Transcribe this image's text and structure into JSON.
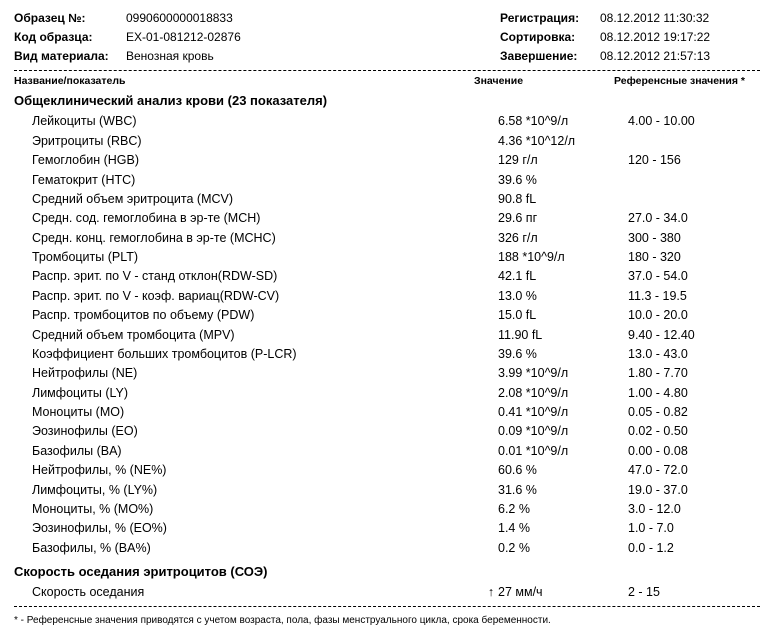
{
  "header": {
    "left": [
      {
        "label": "Образец №:",
        "value": "0990600000018833"
      },
      {
        "label": "Код образца:",
        "value": "EX-01-081212-02876"
      },
      {
        "label": "Вид материала:",
        "value": "Венозная кровь"
      }
    ],
    "right": [
      {
        "label": "Регистрация:",
        "value": "08.12.2012  11:30:32"
      },
      {
        "label": "Сортировка:",
        "value": "08.12.2012  19:17:22"
      },
      {
        "label": "Завершение:",
        "value": "08.12.2012  21:57:13"
      }
    ]
  },
  "columns": {
    "name": "Название/показатель",
    "value": "Значение",
    "ref": "Референсные значения *"
  },
  "sections": [
    {
      "title": "Общеклинический анализ крови (23 показателя)",
      "rows": [
        {
          "name": "Лейкоциты (WBC)",
          "value": "6.58 *10^9/л",
          "ref": "4.00 - 10.00"
        },
        {
          "name": "Эритроциты (RBC)",
          "value": "4.36 *10^12/л",
          "ref": ""
        },
        {
          "name": "Гемоглобин (HGB)",
          "value": "129 г/л",
          "ref": "120 - 156"
        },
        {
          "name": "Гематокрит (HTC)",
          "value": "39.6 %",
          "ref": ""
        },
        {
          "name": "Средний объем эритроцита (MCV)",
          "value": "90.8 fL",
          "ref": ""
        },
        {
          "name": "Средн. сод. гемоглобина в эр-те (MCH)",
          "value": "29.6 пг",
          "ref": "27.0 - 34.0"
        },
        {
          "name": "Средн. конц. гемоглобина в эр-те (MCHC)",
          "value": "326 г/л",
          "ref": "300 - 380"
        },
        {
          "name": "Тромбоциты (PLT)",
          "value": "188 *10^9/л",
          "ref": "180 - 320"
        },
        {
          "name": "Распр. эрит. по V - станд отклон(RDW-SD)",
          "value": "42.1 fL",
          "ref": "37.0 - 54.0"
        },
        {
          "name": "Распр. эрит. по V - коэф. вариац(RDW-CV)",
          "value": "13.0 %",
          "ref": "11.3 - 19.5"
        },
        {
          "name": "Распр. тромбоцитов по объему (PDW)",
          "value": "15.0 fL",
          "ref": "10.0 - 20.0"
        },
        {
          "name": "Средний объем тромбоцита (MPV)",
          "value": "11.90 fL",
          "ref": "9.40 - 12.40"
        },
        {
          "name": "Коэффициент больших тромбоцитов (P-LCR)",
          "value": "39.6 %",
          "ref": "13.0 - 43.0"
        },
        {
          "name": "Нейтрофилы (NE)",
          "value": "3.99 *10^9/л",
          "ref": "1.80 - 7.70"
        },
        {
          "name": "Лимфоциты (LY)",
          "value": "2.08 *10^9/л",
          "ref": "1.00 - 4.80"
        },
        {
          "name": "Моноциты (MO)",
          "value": "0.41 *10^9/л",
          "ref": "0.05 - 0.82"
        },
        {
          "name": "Эозинофилы (EO)",
          "value": "0.09 *10^9/л",
          "ref": "0.02 - 0.50"
        },
        {
          "name": "Базофилы (BA)",
          "value": "0.01 *10^9/л",
          "ref": "0.00 - 0.08"
        },
        {
          "name": "Нейтрофилы, % (NE%)",
          "value": "60.6 %",
          "ref": "47.0 - 72.0"
        },
        {
          "name": "Лимфоциты, % (LY%)",
          "value": "31.6 %",
          "ref": "19.0 - 37.0"
        },
        {
          "name": "Моноциты, % (MO%)",
          "value": "6.2 %",
          "ref": "3.0 - 12.0"
        },
        {
          "name": "Эозинофилы, % (EO%)",
          "value": "1.4 %",
          "ref": "1.0 - 7.0"
        },
        {
          "name": "Базофилы, % (BA%)",
          "value": "0.2 %",
          "ref": "0.0 - 1.2"
        }
      ]
    },
    {
      "title": "Скорость оседания эритроцитов (СОЭ)",
      "rows": [
        {
          "name": "Скорость оседания",
          "arrow": "↑",
          "value": "27 мм/ч",
          "ref": "2 - 15"
        }
      ]
    }
  ],
  "footnote": "* - Референсные значения приводятся с учетом возраста, пола, фазы менструального цикла, срока беременности."
}
